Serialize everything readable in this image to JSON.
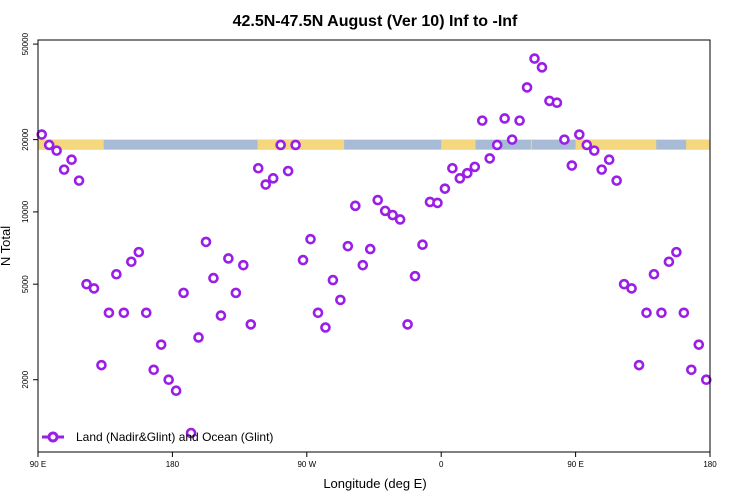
{
  "chart_data": {
    "type": "scatter",
    "title": "42.5N-47.5N August (Ver 10)   Inf to -Inf",
    "xlabel": "Longitude (deg E)",
    "ylabel": "N Total",
    "y_scale": "log",
    "xlim": [
      0,
      450
    ],
    "ylim": [
      1000,
      52000
    ],
    "x_tick_values": [
      0,
      90,
      180,
      270,
      360,
      450
    ],
    "x_tick_labels": [
      "90 E",
      "180",
      "90 W",
      "0",
      "90 E",
      "180"
    ],
    "y_tick_values": [
      2000,
      5000,
      10000,
      20000,
      50000
    ],
    "y_tick_labels": [
      "2000",
      "5000",
      "10000",
      "20000",
      "50000"
    ],
    "legend": {
      "label": "Land (Nadir&Glint) and Ocean (Glint)",
      "position": "bottom-left"
    },
    "colors": {
      "series": "#9b1ee6",
      "land": "#f5d77e",
      "ocean": "#a7bad6",
      "axis": "#000000"
    },
    "map_strip": {
      "y_value": 18700,
      "land_segments": [
        [
          0,
          44
        ],
        [
          147,
          205
        ],
        [
          270,
          293
        ],
        [
          330,
          330
        ],
        [
          360,
          414
        ],
        [
          434,
          450
        ]
      ]
    },
    "series": [
      {
        "name": "Land (Nadir&Glint) and Ocean (Glint)",
        "x": [
          2.5,
          7.5,
          12.5,
          17.5,
          22.5,
          27.5,
          32.5,
          37.5,
          42.5,
          47.5,
          52.5,
          57.5,
          62.5,
          67.5,
          72.5,
          77.5,
          82.5,
          87.5,
          92.5,
          97.5,
          102.5,
          107.5,
          112.5,
          117.5,
          122.5,
          127.5,
          132.5,
          137.5,
          142.5,
          147.5,
          152.5,
          157.5,
          162.5,
          167.5,
          172.5,
          177.5,
          182.5,
          187.5,
          192.5,
          197.5,
          202.5,
          207.5,
          212.5,
          217.5,
          222.5,
          227.5,
          232.5,
          237.5,
          242.5,
          247.5,
          252.5,
          257.5,
          262.5,
          267.5,
          272.5,
          277.5,
          282.5,
          287.5,
          292.5,
          297.5,
          302.5,
          307.5,
          312.5,
          317.5,
          322.5,
          327.5,
          332.5,
          337.5,
          342.5,
          347.5,
          352.5,
          357.5,
          362.5,
          367.5,
          372.5,
          377.5,
          382.5,
          387.5,
          392.5,
          397.5,
          402.5,
          407.5,
          412.5,
          417.5,
          422.5,
          427.5,
          432.5,
          437.5,
          442.5,
          447.5
        ],
        "y": [
          21000,
          19000,
          18000,
          15000,
          16500,
          13500,
          5000,
          4800,
          2300,
          3800,
          5500,
          3800,
          6200,
          6800,
          3800,
          2200,
          2800,
          2000,
          1800,
          4600,
          1200,
          3000,
          7500,
          5300,
          3700,
          6400,
          4600,
          6000,
          3400,
          15200,
          13000,
          13800,
          19000,
          14800,
          19000,
          6300,
          7700,
          3800,
          3300,
          5200,
          4300,
          7200,
          10600,
          6000,
          7000,
          11200,
          10100,
          9700,
          9300,
          3400,
          5400,
          7300,
          11000,
          10900,
          12500,
          15200,
          13800,
          14500,
          15400,
          24000,
          16700,
          19000,
          24500,
          20000,
          24000,
          33000,
          43500,
          40000,
          29000,
          28500,
          20000,
          15600,
          21000,
          19000,
          18000,
          15000,
          16500,
          13500,
          5000,
          4800,
          2300,
          3800,
          5500,
          3800,
          6200,
          6800,
          3800,
          2200,
          2800,
          2000
        ]
      }
    ]
  }
}
